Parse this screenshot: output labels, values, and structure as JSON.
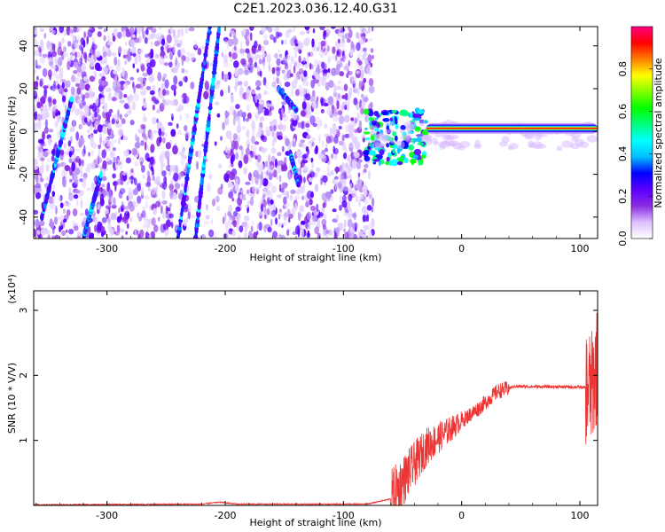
{
  "title": "C2E1.2023.036.12.40.G31",
  "chart_data": [
    {
      "type": "heatmap",
      "name": "spectrogram",
      "xlabel": "Height of straight line (km)",
      "ylabel": "Frequency (Hz)",
      "xlim": [
        -362,
        115
      ],
      "ylim": [
        -50,
        49
      ],
      "x_ticks": [
        -300,
        -200,
        -100,
        0,
        100
      ],
      "y_ticks": [
        -40,
        -20,
        0,
        20,
        40
      ],
      "colorbar": {
        "label": "Normalized spectral amplitude",
        "range": [
          0.0,
          1.0
        ],
        "ticks": [
          "0.0",
          "0.2",
          "0.4",
          "0.6",
          "0.8"
        ],
        "tick_values": [
          0.0,
          0.2,
          0.4,
          0.6,
          0.8
        ],
        "colors": [
          "#ffffff",
          "#dcc0ff",
          "#8a2be2",
          "#5a00ff",
          "#0000ff",
          "#00bfff",
          "#00ffff",
          "#00ff80",
          "#00ff00",
          "#80ff00",
          "#ffff00",
          "#ff8000",
          "#ff0000",
          "#ff0080"
        ]
      },
      "features": {
        "noise_region_x": [
          -362,
          -75
        ],
        "stripes": [
          {
            "x": [
              -240,
              -213
            ],
            "y": [
              -50,
              49
            ]
          },
          {
            "x": [
              -225,
              -205
            ],
            "y": [
              -50,
              49
            ]
          },
          {
            "x": [
              -355,
              -330
            ],
            "y": [
              -40,
              15
            ]
          },
          {
            "x": [
              -320,
              -305
            ],
            "y": [
              -50,
              -20
            ]
          },
          {
            "x": [
              -155,
              -140
            ],
            "y": [
              20,
              10
            ]
          },
          {
            "x": [
              -145,
              -138
            ],
            "y": [
              -10,
              -25
            ]
          }
        ],
        "carrier": {
          "x": [
            -30,
            115
          ],
          "y": 1.5,
          "amplitude": 0.8
        },
        "transition": {
          "x": [
            -82,
            -30
          ],
          "y": [
            -15,
            10
          ]
        }
      }
    },
    {
      "type": "line",
      "name": "snr",
      "xlabel": "Height of straight line (km)",
      "ylabel": "SNR (10 * V/V)",
      "y_multiplier": "(x10⁴)",
      "xlim": [
        -362,
        115
      ],
      "ylim": [
        0,
        3.3
      ],
      "x_ticks": [
        -300,
        -200,
        -100,
        0,
        100
      ],
      "y_ticks": [
        1,
        2,
        3
      ],
      "color": "#ee3333",
      "profile": [
        {
          "x": -362,
          "y": 0.01
        },
        {
          "x": -220,
          "y": 0.02
        },
        {
          "x": -205,
          "y": 0.05
        },
        {
          "x": -190,
          "y": 0.02
        },
        {
          "x": -80,
          "y": 0.02
        },
        {
          "x": -60,
          "y": 0.1
        },
        {
          "x": -45,
          "y": 0.5
        },
        {
          "x": -30,
          "y": 0.9
        },
        {
          "x": -15,
          "y": 1.1
        },
        {
          "x": 0,
          "y": 1.3
        },
        {
          "x": 15,
          "y": 1.5
        },
        {
          "x": 30,
          "y": 1.75
        },
        {
          "x": 45,
          "y": 1.83
        },
        {
          "x": 100,
          "y": 1.82
        },
        {
          "x": 110,
          "y": 1.8
        },
        {
          "x": 115,
          "y": 2.2
        }
      ]
    }
  ]
}
